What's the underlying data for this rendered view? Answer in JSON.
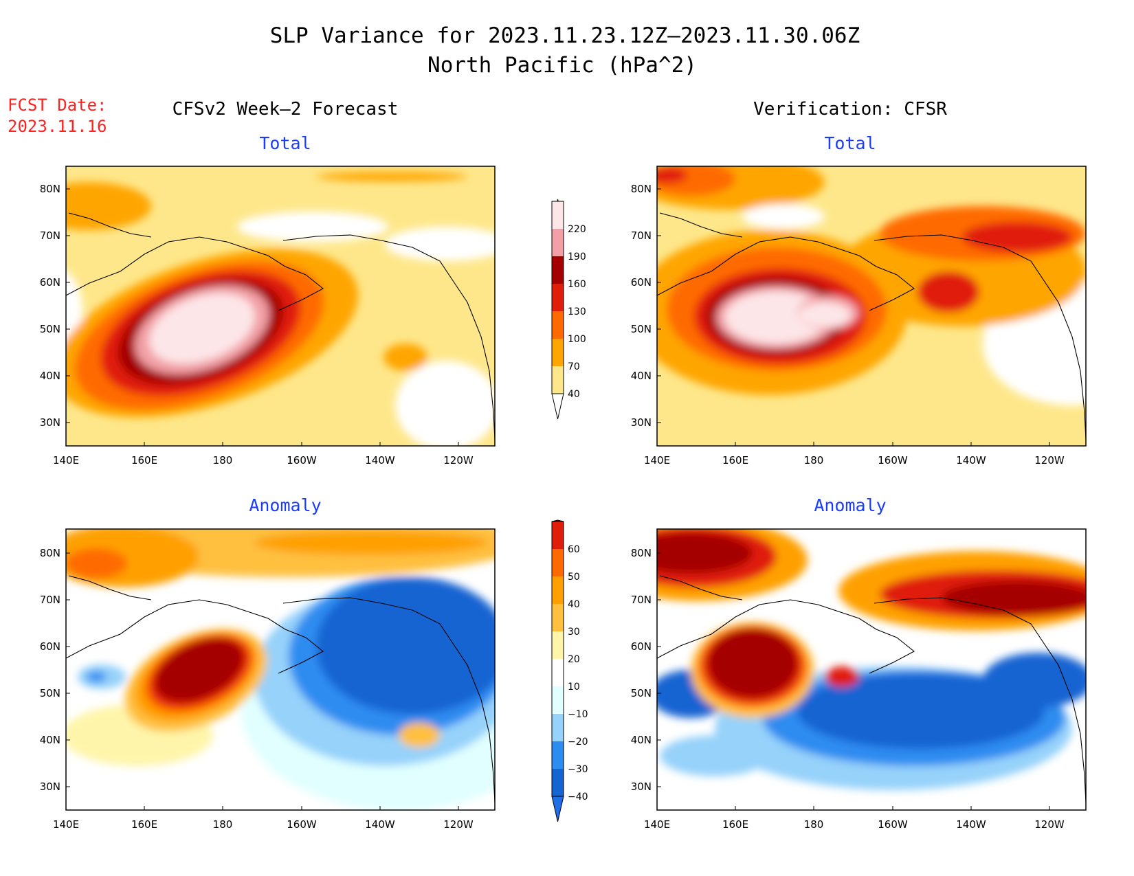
{
  "title": {
    "line1": "SLP Variance for 2023.11.23.12Z–2023.11.30.06Z",
    "line2": "North Pacific (hPa^2)"
  },
  "fcst_date": {
    "label": "FCST Date:",
    "value": "2023.11.16"
  },
  "columns": {
    "forecast": "CFSv2 Week–2 Forecast",
    "verification": "Verification: CFSR"
  },
  "row_titles": {
    "total": "Total",
    "anomaly": "Anomaly"
  },
  "axes": {
    "lon_ticks": [
      "140E",
      "160E",
      "180",
      "160W",
      "140W",
      "120W"
    ],
    "lat_ticks": [
      "30N",
      "40N",
      "50N",
      "60N",
      "70N",
      "80N"
    ]
  },
  "colorbars": {
    "total": {
      "levels": [
        "40",
        "70",
        "100",
        "130",
        "160",
        "190",
        "220"
      ],
      "colors": [
        "#fee78a",
        "#ffa500",
        "#ff6a00",
        "#e01c0a",
        "#a50000",
        "#f2a0a6",
        "#fde6e8"
      ]
    },
    "anomaly": {
      "levels": [
        "−40",
        "−30",
        "−20",
        "−10",
        "10",
        "20",
        "30",
        "40",
        "50",
        "60"
      ],
      "colors": [
        "#1e6ee6",
        "#1464d2",
        "#2d8cf0",
        "#96d2fa",
        "#e1ffff",
        "#ffffff",
        "#fff5aa",
        "#ffc040",
        "#ffa000",
        "#ff6a00",
        "#e01c0a",
        "#a50000"
      ]
    }
  },
  "colors": {
    "fcst_text": "#ff2020",
    "subtitle_text": "#1a3cff"
  }
}
